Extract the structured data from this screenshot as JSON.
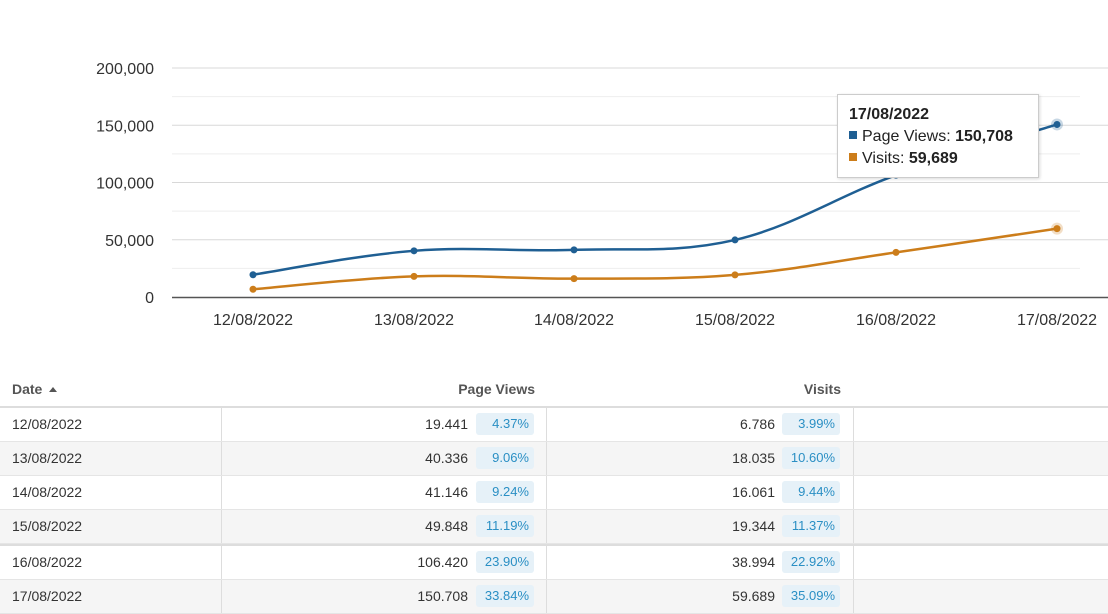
{
  "chart_data": {
    "type": "line",
    "categories": [
      "12/08/2022",
      "13/08/2022",
      "14/08/2022",
      "15/08/2022",
      "16/08/2022",
      "17/08/2022"
    ],
    "series": [
      {
        "name": "Page Views",
        "values": [
          19441,
          40336,
          41146,
          49848,
          106420,
          150708
        ],
        "color": "#1f5f93"
      },
      {
        "name": "Visits",
        "values": [
          6786,
          18035,
          16061,
          19344,
          38994,
          59689
        ],
        "color": "#cc7d1a"
      }
    ],
    "y_ticks": [
      "0",
      "50,000",
      "100,000",
      "150,000",
      "200,000"
    ],
    "ylim": [
      0,
      200000
    ],
    "grid": true,
    "title": "",
    "xlabel": "",
    "ylabel": ""
  },
  "tooltip": {
    "date": "17/08/2022",
    "rows": [
      {
        "label": "Page Views:",
        "value": "150,708",
        "color": "#1f5f93"
      },
      {
        "label": "Visits:",
        "value": "59,689",
        "color": "#cc7d1a"
      }
    ]
  },
  "table": {
    "headers": {
      "date": "Date",
      "page_views": "Page Views",
      "visits": "Visits"
    },
    "rows": [
      {
        "date": "12/08/2022",
        "page_views": "19.441",
        "pv_pct": "4.37%",
        "visits": "6.786",
        "visits_pct": "3.99%"
      },
      {
        "date": "13/08/2022",
        "page_views": "40.336",
        "pv_pct": "9.06%",
        "visits": "18.035",
        "visits_pct": "10.60%"
      },
      {
        "date": "14/08/2022",
        "page_views": "41.146",
        "pv_pct": "9.24%",
        "visits": "16.061",
        "visits_pct": "9.44%"
      },
      {
        "date": "15/08/2022",
        "page_views": "49.848",
        "pv_pct": "11.19%",
        "visits": "19.344",
        "visits_pct": "11.37%"
      },
      {
        "date": "16/08/2022",
        "page_views": "106.420",
        "pv_pct": "23.90%",
        "visits": "38.994",
        "visits_pct": "22.92%"
      },
      {
        "date": "17/08/2022",
        "page_views": "150.708",
        "pv_pct": "33.84%",
        "visits": "59.689",
        "visits_pct": "35.09%"
      }
    ]
  }
}
